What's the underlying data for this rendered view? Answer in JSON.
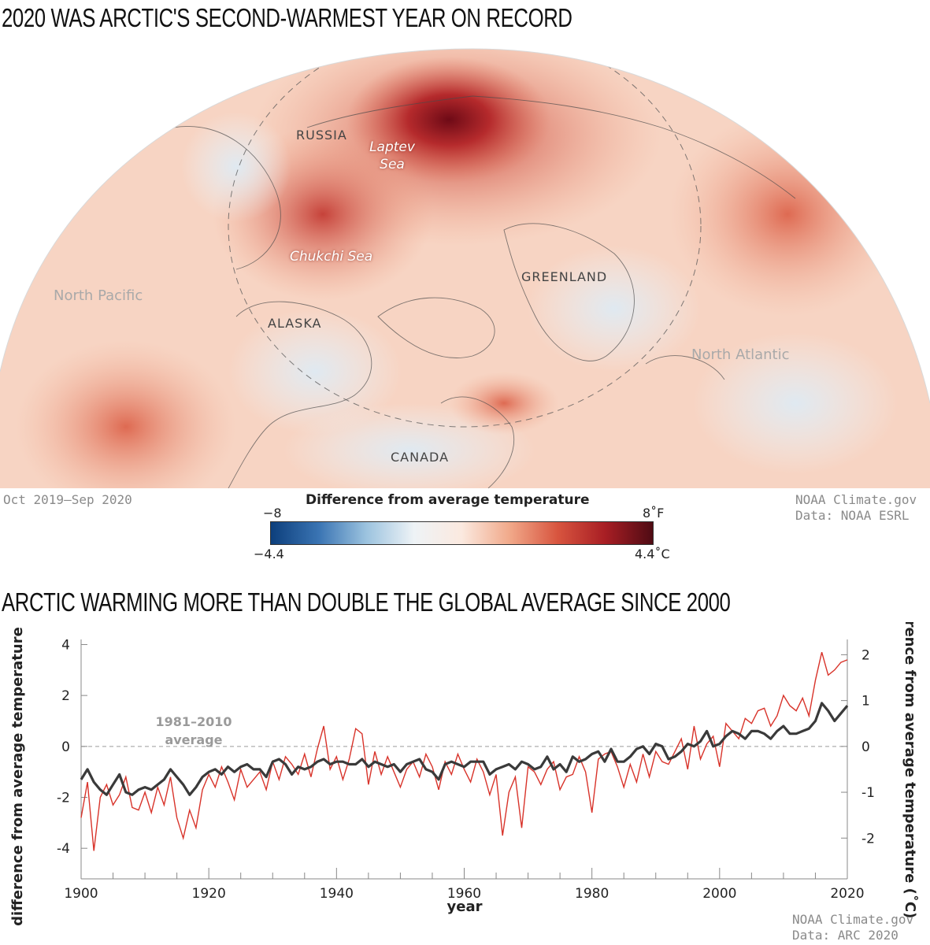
{
  "map": {
    "title": "2020 WAS ARCTIC'S SECOND-WARMEST YEAR ON RECORD",
    "labels": {
      "russia": "RUSSIA",
      "laptev_line1": "Laptev",
      "laptev_line2": "Sea",
      "chukchi": "Chukchi Sea",
      "greenland": "GREENLAND",
      "alaska": "ALASKA",
      "canada": "CANADA",
      "north_pacific": "North Pacific",
      "north_atlantic": "North Atlantic"
    },
    "period": "Oct 2019–Sep 2020",
    "credit_line1": "NOAA Climate.gov",
    "credit_line2": "Data: NOAA ESRL",
    "colorbar": {
      "title": "Difference from average temperature",
      "min_f": "−8",
      "max_f": "8˚F",
      "min_c": "−4.4",
      "max_c": "4.4˚C",
      "colors": [
        "#0d3f7c",
        "#3a74b3",
        "#9cc3df",
        "#eef3f6",
        "#fbe9df",
        "#f1a98a",
        "#d8553f",
        "#a81e24",
        "#4f0b14"
      ]
    }
  },
  "chart": {
    "title": "ARCTIC WARMING MORE THAN DOUBLE THE GLOBAL AVERAGE SINCE 2000",
    "reference_label_line1": "1981–2010",
    "reference_label_line2": "average",
    "credit_line1": "NOAA Climate.gov",
    "credit_line2": "Data: ARC 2020"
  },
  "chart_data": {
    "type": "line",
    "xlabel": "year",
    "ylabel_left": "difference from average temperature (˚F)",
    "ylabel_right": "difference from average temperature (˚C)",
    "xlim": [
      1900,
      2020
    ],
    "ylim_f": [
      -5.2,
      4.2
    ],
    "xticks": [
      1900,
      1920,
      1940,
      1960,
      1980,
      2000,
      2020
    ],
    "yticks_f": [
      4,
      2,
      0,
      -2,
      -4
    ],
    "yticks_c": [
      2,
      1,
      0,
      -1,
      -2
    ],
    "reference_line_f": 0,
    "colors": {
      "arctic": "#d8332a",
      "global": "#3a3a3a"
    },
    "series": [
      {
        "key": "arctic",
        "x": [
          1900,
          1901,
          1902,
          1903,
          1904,
          1905,
          1906,
          1907,
          1908,
          1909,
          1910,
          1911,
          1912,
          1913,
          1914,
          1915,
          1916,
          1917,
          1918,
          1919,
          1920,
          1921,
          1922,
          1923,
          1924,
          1925,
          1926,
          1927,
          1928,
          1929,
          1930,
          1931,
          1932,
          1933,
          1934,
          1935,
          1936,
          1937,
          1938,
          1939,
          1940,
          1941,
          1942,
          1943,
          1944,
          1945,
          1946,
          1947,
          1948,
          1949,
          1950,
          1951,
          1952,
          1953,
          1954,
          1955,
          1956,
          1957,
          1958,
          1959,
          1960,
          1961,
          1962,
          1963,
          1964,
          1965,
          1966,
          1967,
          1968,
          1969,
          1970,
          1971,
          1972,
          1973,
          1974,
          1975,
          1976,
          1977,
          1978,
          1979,
          1980,
          1981,
          1982,
          1983,
          1984,
          1985,
          1986,
          1987,
          1988,
          1989,
          1990,
          1991,
          1992,
          1993,
          1994,
          1995,
          1996,
          1997,
          1998,
          1999,
          2000,
          2001,
          2002,
          2003,
          2004,
          2005,
          2006,
          2007,
          2008,
          2009,
          2010,
          2011,
          2012,
          2013,
          2014,
          2015,
          2016,
          2017,
          2018,
          2019,
          2020
        ],
        "y": [
          -2.8,
          -1.4,
          -4.1,
          -2.0,
          -1.5,
          -2.3,
          -1.9,
          -1.2,
          -2.4,
          -2.5,
          -1.8,
          -2.6,
          -1.6,
          -2.3,
          -1.2,
          -2.8,
          -3.6,
          -2.5,
          -3.2,
          -1.7,
          -1.1,
          -1.6,
          -0.8,
          -1.4,
          -2.1,
          -0.9,
          -1.6,
          -1.3,
          -1.0,
          -1.7,
          -0.6,
          -1.3,
          -0.4,
          -0.7,
          -1.1,
          -0.3,
          -1.2,
          -0.1,
          0.8,
          -0.9,
          -0.4,
          -1.3,
          -0.5,
          0.7,
          0.5,
          -1.5,
          -0.2,
          -1.1,
          -0.4,
          -1.0,
          -1.6,
          -0.9,
          -0.6,
          -1.2,
          -0.3,
          -0.8,
          -1.7,
          -0.6,
          -1.1,
          -0.3,
          -0.9,
          -1.4,
          -0.5,
          -1.0,
          -1.9,
          -1.1,
          -3.5,
          -1.8,
          -1.2,
          -3.2,
          -0.8,
          -1.0,
          -1.5,
          -0.9,
          -0.6,
          -1.7,
          -1.2,
          -1.1,
          -0.4,
          -1.0,
          -2.6,
          -0.5,
          -0.3,
          -0.2,
          -0.8,
          -1.6,
          -0.7,
          -1.4,
          -0.3,
          -1.2,
          -0.2,
          -0.6,
          -0.7,
          -0.2,
          0.3,
          -0.9,
          0.8,
          -0.5,
          0.1,
          0.4,
          -0.8,
          0.9,
          0.6,
          0.3,
          1.1,
          0.9,
          1.4,
          1.5,
          0.8,
          1.2,
          2.0,
          1.6,
          1.4,
          1.9,
          1.2,
          2.6,
          3.7,
          2.8,
          3.0,
          3.3,
          3.4
        ]
      },
      {
        "key": "global",
        "x": [
          1900,
          1901,
          1902,
          1903,
          1904,
          1905,
          1906,
          1907,
          1908,
          1909,
          1910,
          1911,
          1912,
          1913,
          1914,
          1915,
          1916,
          1917,
          1918,
          1919,
          1920,
          1921,
          1922,
          1923,
          1924,
          1925,
          1926,
          1927,
          1928,
          1929,
          1930,
          1931,
          1932,
          1933,
          1934,
          1935,
          1936,
          1937,
          1938,
          1939,
          1940,
          1941,
          1942,
          1943,
          1944,
          1945,
          1946,
          1947,
          1948,
          1949,
          1950,
          1951,
          1952,
          1953,
          1954,
          1955,
          1956,
          1957,
          1958,
          1959,
          1960,
          1961,
          1962,
          1963,
          1964,
          1965,
          1966,
          1967,
          1968,
          1969,
          1970,
          1971,
          1972,
          1973,
          1974,
          1975,
          1976,
          1977,
          1978,
          1979,
          1980,
          1981,
          1982,
          1983,
          1984,
          1985,
          1986,
          1987,
          1988,
          1989,
          1990,
          1991,
          1992,
          1993,
          1994,
          1995,
          1996,
          1997,
          1998,
          1999,
          2000,
          2001,
          2002,
          2003,
          2004,
          2005,
          2006,
          2007,
          2008,
          2009,
          2010,
          2011,
          2012,
          2013,
          2014,
          2015,
          2016,
          2017,
          2018,
          2019,
          2020
        ],
        "y": [
          -1.3,
          -0.9,
          -1.4,
          -1.7,
          -1.9,
          -1.5,
          -1.1,
          -1.8,
          -1.9,
          -1.7,
          -1.6,
          -1.7,
          -1.5,
          -1.3,
          -0.9,
          -1.2,
          -1.5,
          -1.9,
          -1.6,
          -1.2,
          -1.0,
          -0.9,
          -1.1,
          -0.8,
          -1.0,
          -0.8,
          -0.7,
          -0.9,
          -0.9,
          -1.2,
          -0.6,
          -0.5,
          -0.7,
          -1.1,
          -0.8,
          -0.9,
          -0.8,
          -0.6,
          -0.5,
          -0.7,
          -0.6,
          -0.6,
          -0.7,
          -0.7,
          -0.5,
          -0.8,
          -0.6,
          -0.7,
          -0.8,
          -0.7,
          -1.0,
          -0.7,
          -0.6,
          -0.5,
          -0.9,
          -1.0,
          -1.3,
          -0.7,
          -0.6,
          -0.7,
          -0.8,
          -0.6,
          -0.6,
          -0.6,
          -1.1,
          -0.9,
          -0.8,
          -0.7,
          -0.9,
          -0.6,
          -0.7,
          -0.9,
          -0.8,
          -0.4,
          -0.9,
          -0.7,
          -1.0,
          -0.4,
          -0.6,
          -0.5,
          -0.3,
          -0.2,
          -0.6,
          -0.1,
          -0.6,
          -0.6,
          -0.4,
          -0.1,
          0.0,
          -0.3,
          0.1,
          0.0,
          -0.5,
          -0.4,
          -0.2,
          0.1,
          0.0,
          0.2,
          0.6,
          0.0,
          0.1,
          0.4,
          0.6,
          0.5,
          0.3,
          0.6,
          0.6,
          0.5,
          0.3,
          0.6,
          0.8,
          0.5,
          0.5,
          0.6,
          0.7,
          1.0,
          1.7,
          1.4,
          1.0,
          1.3,
          1.6
        ]
      }
    ]
  }
}
